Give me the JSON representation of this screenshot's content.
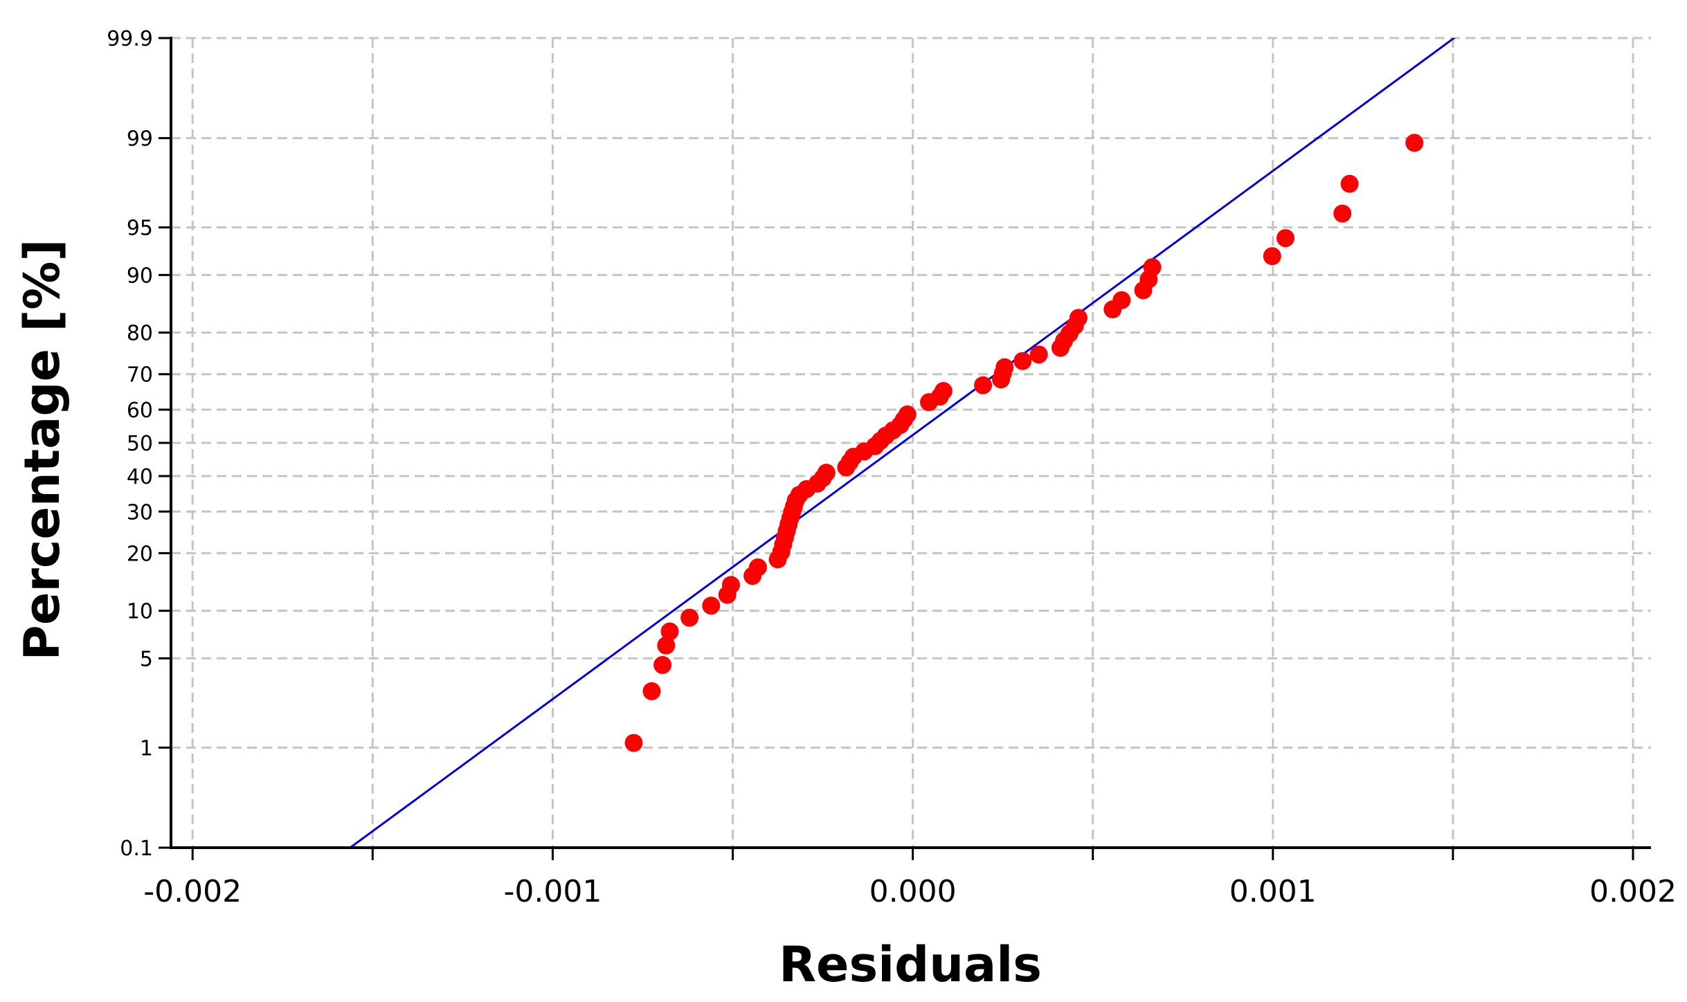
{
  "chart_data": {
    "type": "scatter",
    "title": "",
    "xlabel": "Residuals",
    "ylabel": "Percentage [%]",
    "xlim": [
      -0.00206,
      0.00205
    ],
    "ylim": [
      0.1,
      99.9
    ],
    "y_scale": "normal-probability",
    "grid": true,
    "x_ticks": [
      -0.002,
      -0.0015,
      -0.001,
      -0.0005,
      0.0,
      0.0005,
      0.001,
      0.0015,
      0.002
    ],
    "x_tick_labels": [
      "-0.002",
      "",
      "-0.001",
      "",
      "0.000",
      "",
      "0.001",
      "",
      "0.002"
    ],
    "y_ticks": [
      0.1,
      1,
      5,
      10,
      20,
      30,
      40,
      50,
      60,
      70,
      80,
      90,
      95,
      99,
      99.9
    ],
    "y_tick_labels": [
      "0.1",
      "1",
      "5",
      "10",
      "20",
      "30",
      "40",
      "50",
      "60",
      "70",
      "80",
      "90",
      "95",
      "99",
      "99.9"
    ],
    "series": [
      {
        "kind": "scatter",
        "color": "#ff0000",
        "points": [
          [
            -0.000775,
            1.1
          ],
          [
            -0.000725,
            2.9
          ],
          [
            -0.000695,
            4.5
          ],
          [
            -0.000685,
            6.1
          ],
          [
            -0.000675,
            7.5
          ],
          [
            -0.00062,
            9.1
          ],
          [
            -0.00056,
            10.7
          ],
          [
            -0.000515,
            12.3
          ],
          [
            -0.000505,
            13.9
          ],
          [
            -0.000445,
            15.5
          ],
          [
            -0.00043,
            17.1
          ],
          [
            -0.000375,
            18.7
          ],
          [
            -0.000365,
            20.3
          ],
          [
            -0.00036,
            21.9
          ],
          [
            -0.000355,
            23.5
          ],
          [
            -0.00035,
            25.1
          ],
          [
            -0.000345,
            26.7
          ],
          [
            -0.00034,
            28.3
          ],
          [
            -0.000335,
            29.9
          ],
          [
            -0.00033,
            31.4
          ],
          [
            -0.000325,
            33.0
          ],
          [
            -0.000315,
            34.6
          ],
          [
            -0.000295,
            36.2
          ],
          [
            -0.000265,
            37.8
          ],
          [
            -0.00025,
            39.4
          ],
          [
            -0.00024,
            41.0
          ],
          [
            -0.000185,
            42.6
          ],
          [
            -0.000175,
            44.2
          ],
          [
            -0.000165,
            45.8
          ],
          [
            -0.000135,
            47.4
          ],
          [
            -0.000105,
            49.0
          ],
          [
            -9e-05,
            50.6
          ],
          [
            -7.5e-05,
            52.2
          ],
          [
            -5.5e-05,
            53.8
          ],
          [
            -3.5e-05,
            55.4
          ],
          [
            -2.5e-05,
            57.0
          ],
          [
            -1.5e-05,
            58.6
          ],
          [
            4.5e-05,
            62.2
          ],
          [
            7.5e-05,
            63.8
          ],
          [
            8.5e-05,
            65.4
          ],
          [
            0.000195,
            67.0
          ],
          [
            0.000245,
            68.6
          ],
          [
            0.00025,
            70.2
          ],
          [
            0.000255,
            71.8
          ],
          [
            0.000305,
            73.4
          ],
          [
            0.00035,
            75.0
          ],
          [
            0.00041,
            76.6
          ],
          [
            0.00042,
            78.2
          ],
          [
            0.000435,
            79.8
          ],
          [
            0.00045,
            81.4
          ],
          [
            0.00046,
            83.0
          ],
          [
            0.000555,
            84.6
          ],
          [
            0.00058,
            86.2
          ],
          [
            0.00064,
            87.8
          ],
          [
            0.000655,
            89.4
          ],
          [
            0.000665,
            91.0
          ],
          [
            0.000998,
            92.3
          ],
          [
            0.001035,
            94.1
          ],
          [
            0.001193,
            96.0
          ],
          [
            0.001213,
            97.6
          ],
          [
            0.001393,
            98.9
          ]
        ]
      },
      {
        "kind": "line",
        "color": "#0000dd",
        "mean": -2.98e-05,
        "sd": 0.000496,
        "x_range": [
          -0.001564,
          0.001582
        ]
      }
    ]
  }
}
